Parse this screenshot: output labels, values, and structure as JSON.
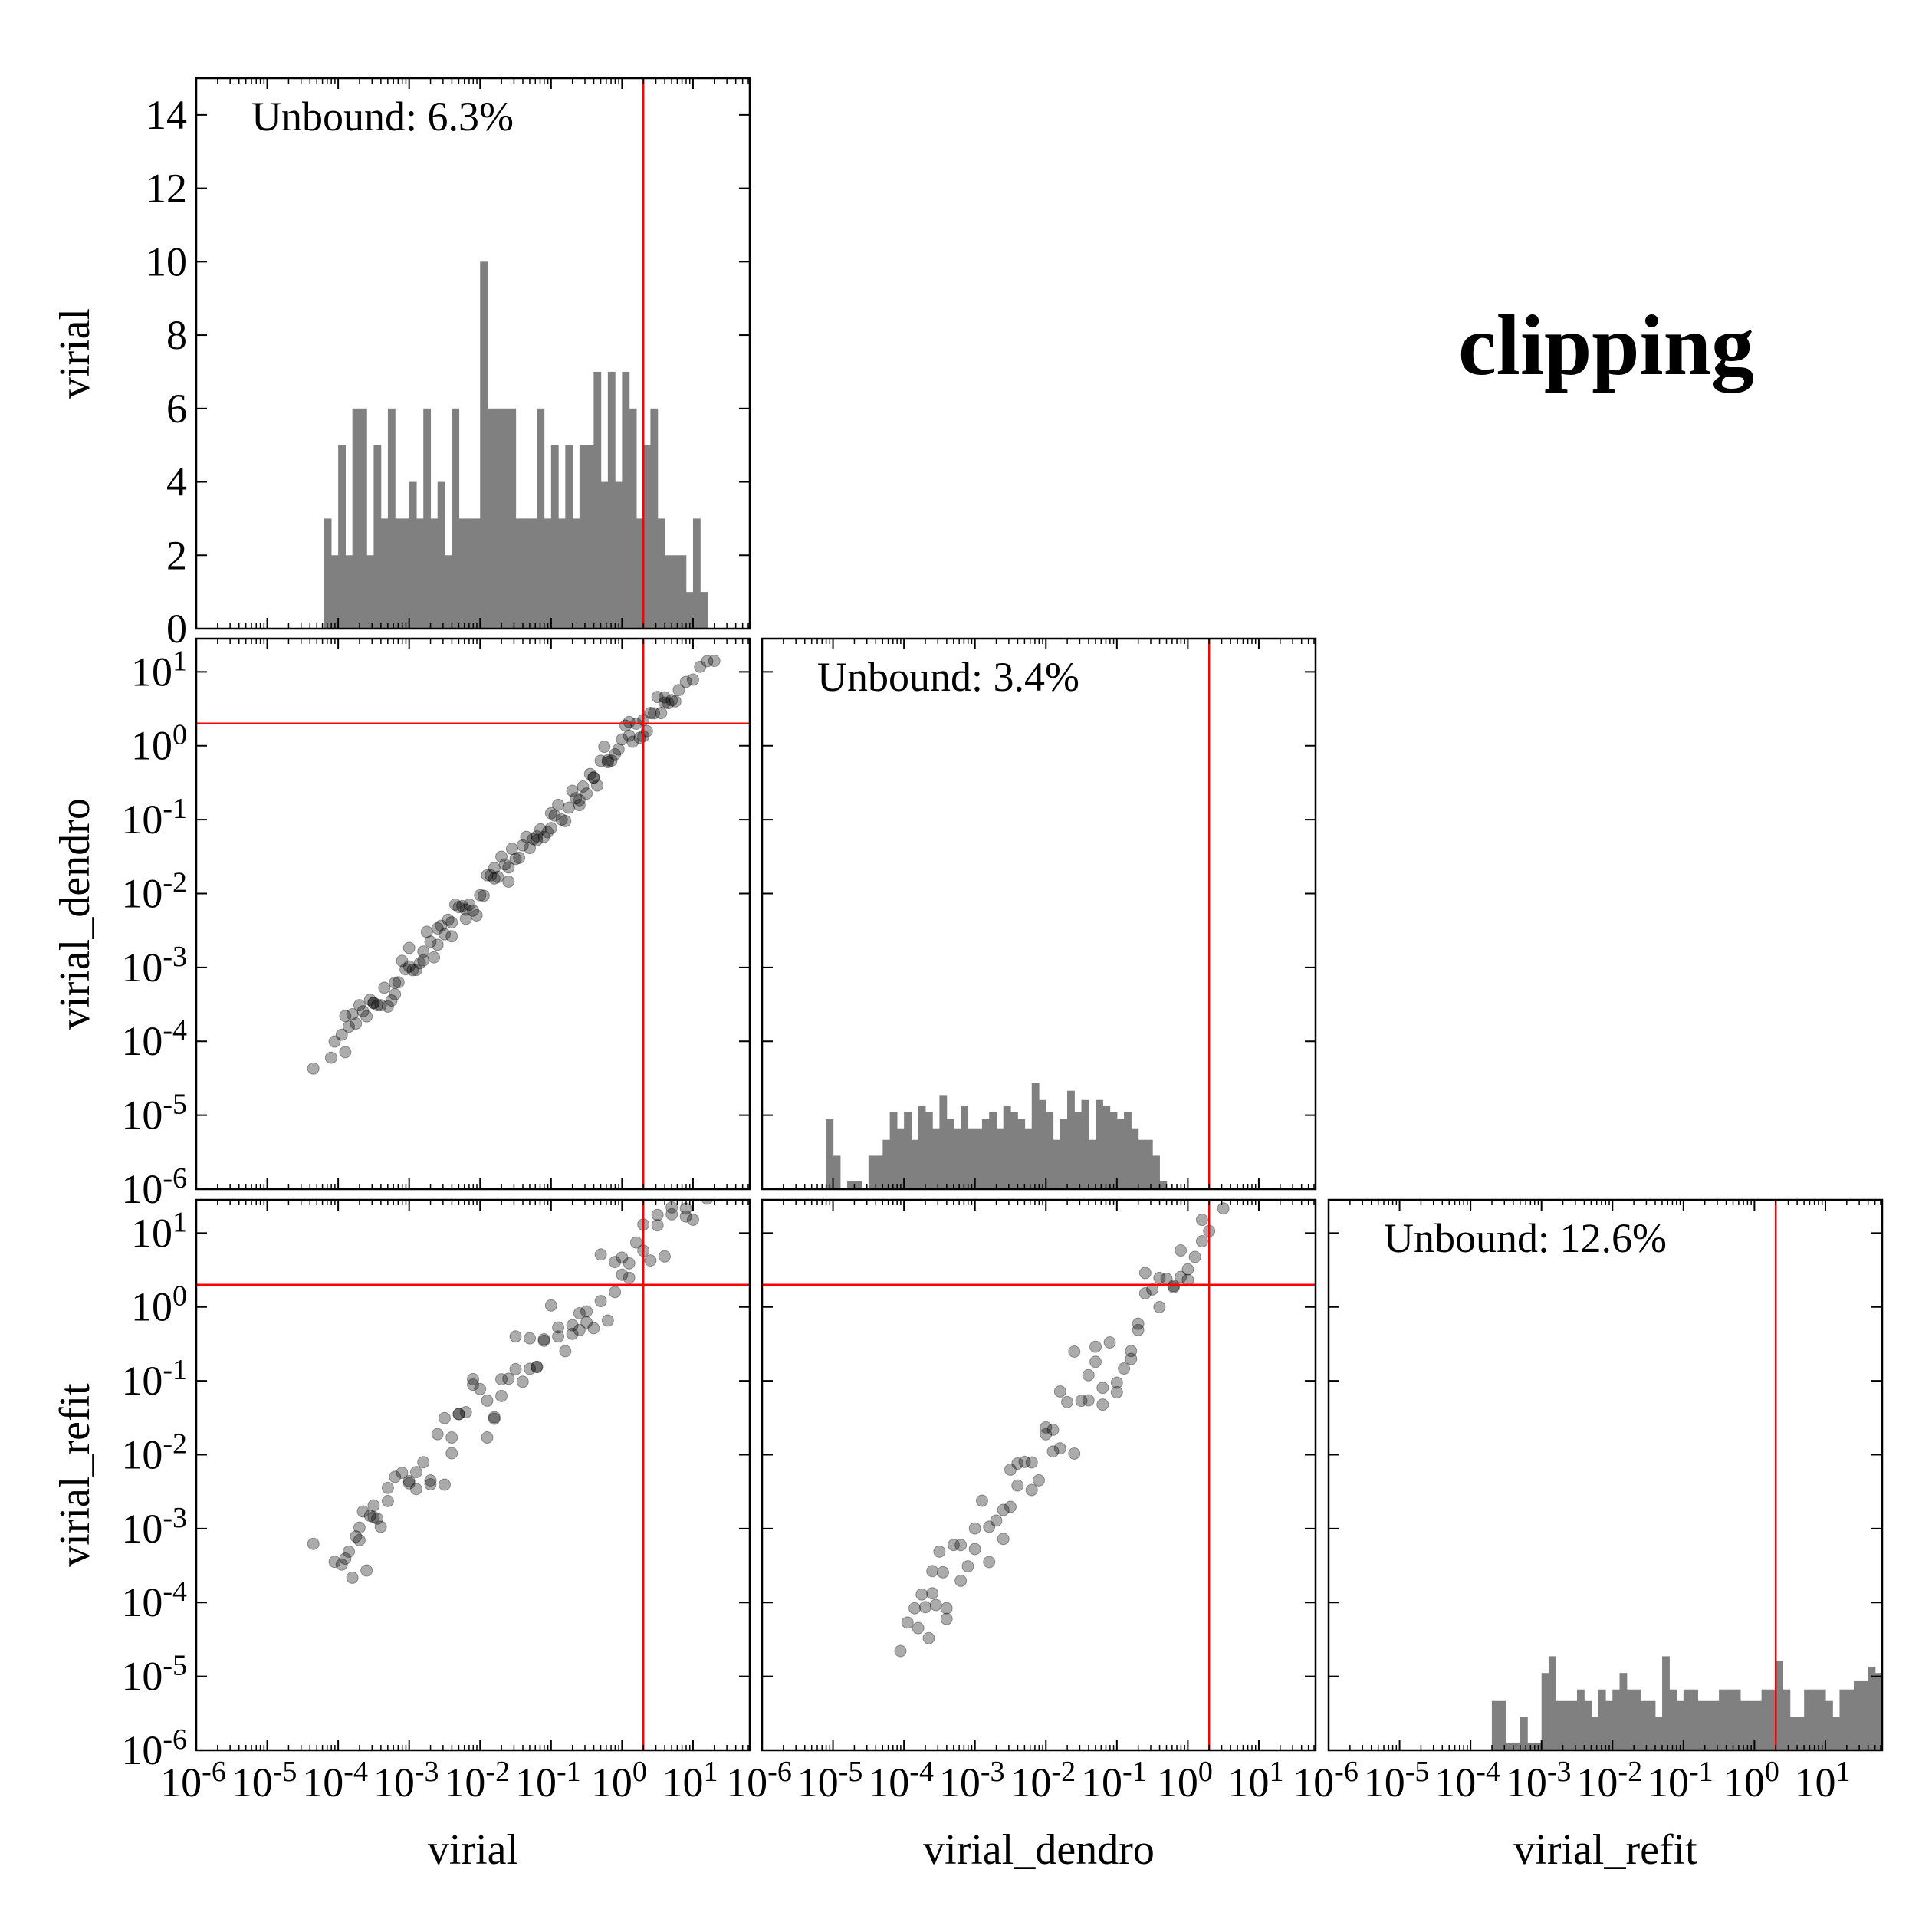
{
  "title": "clipping",
  "colors": {
    "hist": "#808080",
    "threshold": "#ff0000",
    "points": "#000000"
  },
  "chart_data": {
    "type": "corner-plot",
    "variables": [
      "virial",
      "virial_dendro",
      "virial_refit"
    ],
    "threshold": 2,
    "log_tick_labels": [
      "10-6",
      "10-5",
      "10-4",
      "10-3",
      "10-2",
      "10-1",
      "100",
      "101"
    ],
    "log_range": [
      -6,
      1.8
    ],
    "panels": [
      {
        "type": "histogram",
        "row": 0,
        "col": 0,
        "variable": "virial",
        "annotation": "Unbound: 6.3%",
        "ylim": [
          0,
          15
        ],
        "yticks": [
          "0",
          "2",
          "4",
          "6",
          "8",
          "10",
          "12",
          "14"
        ],
        "log_bin_start": -4.2,
        "log_bin_width": 0.1,
        "counts": [
          3,
          2,
          5,
          2,
          6,
          6,
          2,
          5,
          3,
          6,
          3,
          3,
          4,
          3,
          6,
          3,
          4,
          2,
          6,
          3,
          3,
          3,
          10,
          6,
          6,
          6,
          6,
          3,
          3,
          3,
          6,
          3,
          5,
          3,
          5,
          3,
          5,
          5,
          7,
          4,
          7,
          4,
          7,
          6,
          3,
          5,
          6,
          3,
          2,
          2,
          2,
          1,
          3,
          1
        ]
      },
      {
        "type": "scatter",
        "row": 1,
        "col": 0,
        "x_variable": "virial",
        "y_variable": "virial_dendro",
        "slope": 1.0,
        "intercept": 0.0,
        "scatter": 0.12,
        "x_log_values": [
          -4.35,
          -4.1,
          -4.05,
          -3.95,
          -3.9,
          -3.85,
          -3.8,
          -3.75,
          -3.7,
          -3.65,
          -3.6,
          -3.55,
          -3.5,
          -3.45,
          -3.4,
          -3.35,
          -3.3,
          -3.25,
          -3.2,
          -3.15,
          -3.1,
          -3.05,
          -3.0,
          -2.95,
          -2.9,
          -2.85,
          -2.8,
          -2.75,
          -2.7,
          -2.65,
          -2.6,
          -2.55,
          -2.5,
          -2.45,
          -2.4,
          -2.35,
          -2.3,
          -2.25,
          -2.2,
          -2.15,
          -2.1,
          -2.05,
          -2.0,
          -1.95,
          -1.9,
          -1.85,
          -1.8,
          -1.75,
          -1.7,
          -1.65,
          -1.6,
          -1.55,
          -1.5,
          -1.45,
          -1.4,
          -1.35,
          -1.3,
          -1.25,
          -1.2,
          -1.15,
          -1.1,
          -1.05,
          -1.0,
          -0.95,
          -0.9,
          -0.85,
          -0.8,
          -0.75,
          -0.7,
          -0.65,
          -0.6,
          -0.55,
          -0.5,
          -0.45,
          -0.4,
          -0.35,
          -0.3,
          -0.25,
          -0.2,
          -0.15,
          -0.1,
          -0.05,
          0.0,
          0.05,
          0.1,
          0.15,
          0.2,
          0.25,
          0.3,
          0.35,
          0.4,
          0.45,
          0.5,
          0.55,
          0.6,
          0.65,
          0.7,
          0.75,
          0.8,
          0.9,
          1.0,
          1.1,
          1.2,
          1.3,
          -3.9,
          -3.5,
          -3.0,
          -2.6,
          -2.2,
          -1.8,
          -1.2,
          -0.6,
          -0.2,
          0.3,
          -3.2,
          -2.8,
          -2.4,
          -1.6,
          -1.0,
          -0.4,
          0.1,
          0.6
        ]
      },
      {
        "type": "histogram",
        "row": 1,
        "col": 1,
        "variable": "virial_dendro",
        "annotation": "Unbound: 3.4%",
        "ylim": [
          -6,
          -2.6
        ],
        "yticks": [
          "10-6",
          "10-5",
          "10-4",
          "10-3",
          "10-2",
          "10-1",
          "100",
          "101"
        ],
        "log_bin_start": -5.1,
        "log_bin_width": 0.1,
        "counts": [
          5,
          2,
          0,
          1,
          1,
          0,
          2,
          2,
          3,
          6,
          4,
          6,
          3,
          7,
          6,
          4,
          9,
          5,
          4,
          7,
          4,
          4,
          5,
          6,
          4,
          7,
          6,
          5,
          4,
          12,
          8,
          6,
          3,
          5,
          10,
          6,
          8,
          3,
          8,
          7,
          6,
          5,
          6,
          4,
          3,
          3,
          2,
          1
        ]
      },
      {
        "type": "scatter",
        "row": 2,
        "col": 0,
        "x_variable": "virial",
        "y_variable": "virial_refit",
        "slope": 1.0,
        "intercept": 0.55,
        "scatter": 0.3,
        "x_log_values": [
          -4.35,
          -4.05,
          -3.95,
          -3.9,
          -3.85,
          -3.8,
          -3.75,
          -3.7,
          -3.65,
          -3.6,
          -3.55,
          -3.5,
          -3.45,
          -3.4,
          -3.3,
          -3.2,
          -3.1,
          -3.0,
          -2.9,
          -2.8,
          -2.7,
          -2.6,
          -2.5,
          -2.4,
          -2.3,
          -2.2,
          -2.1,
          -2.0,
          -1.9,
          -1.8,
          -1.7,
          -1.6,
          -1.5,
          -1.4,
          -1.3,
          -1.2,
          -1.1,
          -1.0,
          -0.9,
          -0.8,
          -0.7,
          -0.6,
          -0.5,
          -0.4,
          -0.3,
          -0.2,
          -0.1,
          0.0,
          0.1,
          0.2,
          0.3,
          0.4,
          0.5,
          0.6,
          0.7,
          0.8,
          0.9,
          1.0,
          1.1,
          1.2,
          -3.7,
          -3.3,
          -2.9,
          -2.5,
          -2.1,
          -1.7,
          -1.3,
          -0.9,
          -0.5,
          -0.1,
          0.3,
          0.7,
          -3.5,
          -2.7,
          -2.3,
          -1.9,
          -1.5,
          -1.1,
          -0.7,
          -0.3,
          0.1,
          0.5,
          0.9,
          -3.0,
          -2.4,
          -1.8,
          -1.2,
          -0.6,
          0.0
        ]
      },
      {
        "type": "scatter",
        "row": 2,
        "col": 1,
        "x_variable": "virial_dendro",
        "y_variable": "virial_refit",
        "slope": 1.25,
        "intercept": 0.6,
        "scatter": 0.28,
        "x_log_values": [
          -4.05,
          -3.95,
          -3.85,
          -3.8,
          -3.75,
          -3.7,
          -3.65,
          -3.6,
          -3.55,
          -3.5,
          -3.45,
          -3.4,
          -3.3,
          -3.2,
          -3.1,
          -3.0,
          -2.9,
          -2.8,
          -2.7,
          -2.6,
          -2.5,
          -2.4,
          -2.3,
          -2.2,
          -2.1,
          -2.0,
          -1.9,
          -1.8,
          -1.7,
          -1.6,
          -1.5,
          -1.4,
          -1.3,
          -1.2,
          -1.1,
          -1.0,
          -0.9,
          -0.8,
          -0.7,
          -0.6,
          -0.5,
          -0.4,
          -0.3,
          -0.2,
          -0.1,
          0.0,
          0.1,
          0.2,
          0.3,
          0.4,
          0.5,
          0.6,
          -3.6,
          -3.2,
          -2.8,
          -2.4,
          -2.0,
          -1.6,
          -1.2,
          -0.8,
          -0.4,
          0.0,
          0.4,
          -3.4,
          -2.6,
          -2.2,
          -1.8,
          -1.4,
          -1.0,
          -0.6,
          -0.2,
          0.2,
          -3.0,
          -2.5,
          -1.9,
          -1.3,
          -0.7,
          -0.1
        ]
      },
      {
        "type": "histogram",
        "row": 2,
        "col": 2,
        "variable": "virial_refit",
        "annotation": "Unbound: 12.6%",
        "ylim": [
          -6,
          -2.6
        ],
        "yticks": [
          "10-6",
          "10-5",
          "10-4",
          "10-3",
          "10-2",
          "10-1",
          "100",
          "101"
        ],
        "log_bin_start": -3.7,
        "log_bin_width": 0.1,
        "counts": [
          3,
          3,
          1,
          1,
          2,
          1,
          1,
          6,
          9,
          3,
          3,
          3,
          4,
          3,
          2,
          4,
          3,
          4,
          6,
          4,
          4,
          3,
          3,
          2,
          9,
          4,
          3,
          4,
          4,
          3,
          3,
          3,
          4,
          4,
          4,
          3,
          3,
          3,
          4,
          4,
          8,
          4,
          2,
          2,
          4,
          4,
          4,
          3,
          2,
          4,
          4,
          5,
          5,
          7,
          6,
          7,
          5,
          3,
          2,
          1,
          3,
          2
        ]
      }
    ]
  }
}
